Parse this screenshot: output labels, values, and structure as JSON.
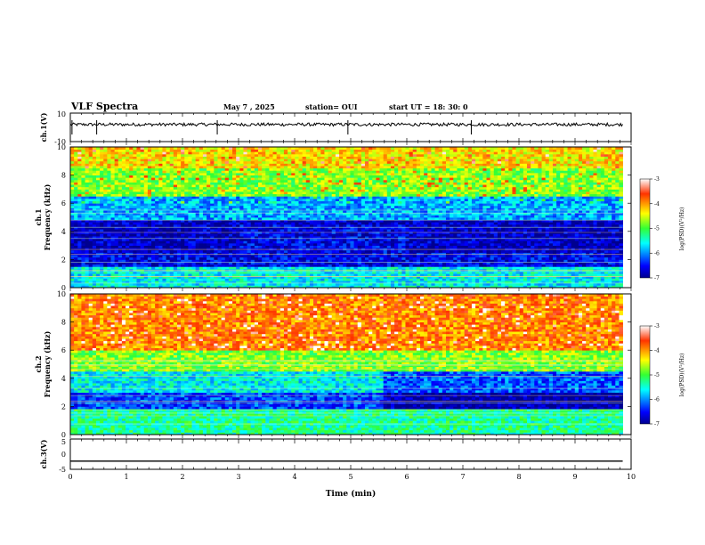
{
  "header": {
    "title": "VLF Spectra",
    "date": "May 7 , 2025",
    "station": "station= OUI",
    "start": "start UT = 18: 30: 0"
  },
  "chart_data": [
    {
      "type": "line",
      "panel": "ch1-waveform",
      "ylabel": "ch.1(V)",
      "yticks": [
        "10",
        "-10"
      ],
      "ylim": [
        -10,
        10
      ],
      "xlim": [
        0,
        10
      ],
      "baseline": 2,
      "spikes_x": [
        0.03,
        0.47,
        2.62,
        4.95,
        7.15
      ]
    },
    {
      "type": "heatmap",
      "panel": "ch1-spectrogram",
      "ylabel_top": "ch.1",
      "ylabel": "Frequency (kHz)",
      "yticks": [
        "0",
        "2",
        "4",
        "6",
        "8",
        "10"
      ],
      "ylim": [
        0,
        10
      ],
      "xlim": [
        0,
        9.85
      ],
      "colorbar": {
        "label": "log(PSD)(V²/Hz)",
        "ticks": [
          "-3",
          "-4",
          "-5",
          "-6",
          "-7"
        ],
        "range": [
          -7,
          -3
        ]
      },
      "bands": [
        {
          "f_from": 0,
          "f_to": 1.5,
          "level": -5.6
        },
        {
          "f_from": 1.5,
          "f_to": 2.5,
          "level": -6.6
        },
        {
          "f_from": 2.5,
          "f_to": 4.8,
          "level": -6.8
        },
        {
          "f_from": 4.8,
          "f_to": 6.5,
          "level": -5.9
        },
        {
          "f_from": 6.5,
          "f_to": 8.5,
          "level": -4.8
        },
        {
          "f_from": 8.5,
          "f_to": 10,
          "level": -4.3
        }
      ]
    },
    {
      "type": "heatmap",
      "panel": "ch2-spectrogram",
      "ylabel_top": "ch.2",
      "ylabel": "Frequency (kHz)",
      "yticks": [
        "0",
        "2",
        "4",
        "6",
        "8",
        "10"
      ],
      "ylim": [
        0,
        10
      ],
      "xlim": [
        0,
        9.85
      ],
      "colorbar": {
        "label": "log(PSD)(V²/Hz)",
        "ticks": [
          "-3",
          "-4",
          "-5",
          "-6",
          "-7"
        ],
        "range": [
          -7,
          -3
        ]
      },
      "bands": [
        {
          "f_from": 0,
          "f_to": 1.8,
          "level": -5.3
        },
        {
          "f_from": 1.8,
          "f_to": 3.0,
          "level": -6.3
        },
        {
          "f_from": 3.0,
          "f_to": 4.5,
          "level": -5.6
        },
        {
          "f_from": 4.5,
          "f_to": 6.0,
          "level": -4.8
        },
        {
          "f_from": 6.0,
          "f_to": 10,
          "level": -3.9
        }
      ]
    },
    {
      "type": "line",
      "panel": "ch3-waveform",
      "ylabel": "ch.3(V)",
      "yticks": [
        "5",
        "0",
        "-5"
      ],
      "ylim": [
        -5,
        5
      ],
      "xlim": [
        0,
        10
      ],
      "xlabel": "Time (min)",
      "xticks": [
        "0",
        "1",
        "2",
        "3",
        "4",
        "5",
        "6",
        "7",
        "8",
        "9",
        "10"
      ],
      "level": -2.3
    }
  ]
}
